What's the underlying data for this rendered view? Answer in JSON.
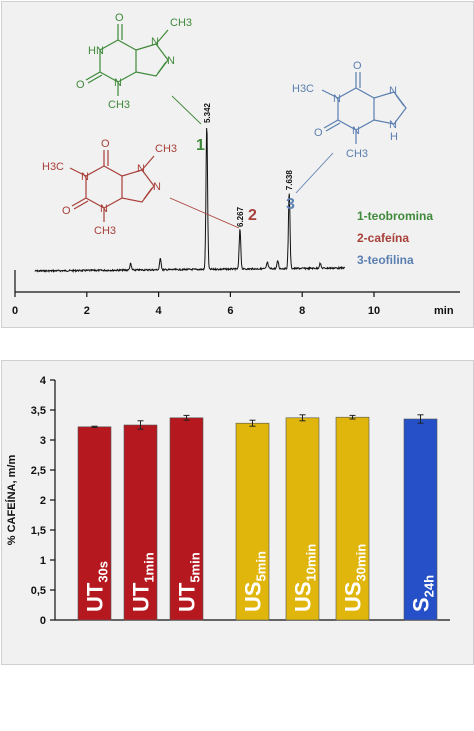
{
  "chart_data": [
    {
      "type": "line",
      "xlabel": "min",
      "ylabel": "",
      "xlim": [
        0,
        12
      ],
      "xticks": [
        "0",
        "2",
        "4",
        "6",
        "8",
        "10"
      ],
      "grid": false,
      "peaks": [
        {
          "number": "1",
          "rt": 5.342,
          "rt_label": "5.342",
          "compound": "1-teobromina",
          "color": "#3f8a3a",
          "height_fraction": 0.9
        },
        {
          "number": "2",
          "rt": 6.267,
          "rt_label": "6.267",
          "compound": "2-cafeína",
          "color": "#a8403a",
          "height_fraction": 0.25
        },
        {
          "number": "3",
          "rt": 7.638,
          "rt_label": "7.638",
          "compound": "3-teofilina",
          "color": "#5a7fb0",
          "height_fraction": 0.48
        }
      ],
      "small_peaks": [
        {
          "rt": 3.22,
          "height_fraction": 0.04
        },
        {
          "rt": 4.05,
          "height_fraction": 0.07
        },
        {
          "rt": 7.03,
          "height_fraction": 0.04
        },
        {
          "rt": 7.32,
          "height_fraction": 0.05
        },
        {
          "rt": 8.5,
          "height_fraction": 0.03
        }
      ],
      "legend": [
        "1-teobromina",
        "2-cafeína",
        "3-teofilina"
      ],
      "legend_colors": [
        "#3f8a3a",
        "#a8403a",
        "#5a7fb0"
      ],
      "structures": {
        "teobromina": {
          "color": "#3f8a3a",
          "atoms": [
            "O",
            "N",
            "HN",
            "O",
            "N",
            "N",
            "CH3",
            "CH3"
          ]
        },
        "cafeina": {
          "color": "#a8403a",
          "atoms": [
            "O",
            "N",
            "H3C",
            "N",
            "O",
            "N",
            "N",
            "CH3",
            "CH3"
          ]
        },
        "teofilina": {
          "color": "#5a7fb0",
          "atoms": [
            "O",
            "N",
            "H3C",
            "N",
            "O",
            "N",
            "N",
            "H",
            "CH3"
          ]
        }
      }
    },
    {
      "type": "bar",
      "ylabel": "% CAFEÍNA, m/m",
      "xlabel": "",
      "ylim": [
        0,
        4
      ],
      "yticks": [
        "0",
        "0,5",
        "1",
        "1,5",
        "2",
        "2,5",
        "3",
        "3,5",
        "4"
      ],
      "grid": false,
      "categories": [
        {
          "main": "UT",
          "sub": "30s"
        },
        {
          "main": "UT",
          "sub": "1min"
        },
        {
          "main": "UT",
          "sub": "5min"
        },
        {
          "main": "US",
          "sub": "5min"
        },
        {
          "main": "US",
          "sub": "10min"
        },
        {
          "main": "US",
          "sub": "30min"
        },
        {
          "main": "S",
          "sub": "24h"
        }
      ],
      "values": [
        3.22,
        3.25,
        3.37,
        3.28,
        3.37,
        3.38,
        3.35
      ],
      "errors": [
        0.01,
        0.07,
        0.04,
        0.05,
        0.05,
        0.03,
        0.07
      ],
      "colors": [
        "#b5191f",
        "#b5191f",
        "#b5191f",
        "#e0b60c",
        "#e0b60c",
        "#e0b60c",
        "#2550c8"
      ]
    }
  ]
}
